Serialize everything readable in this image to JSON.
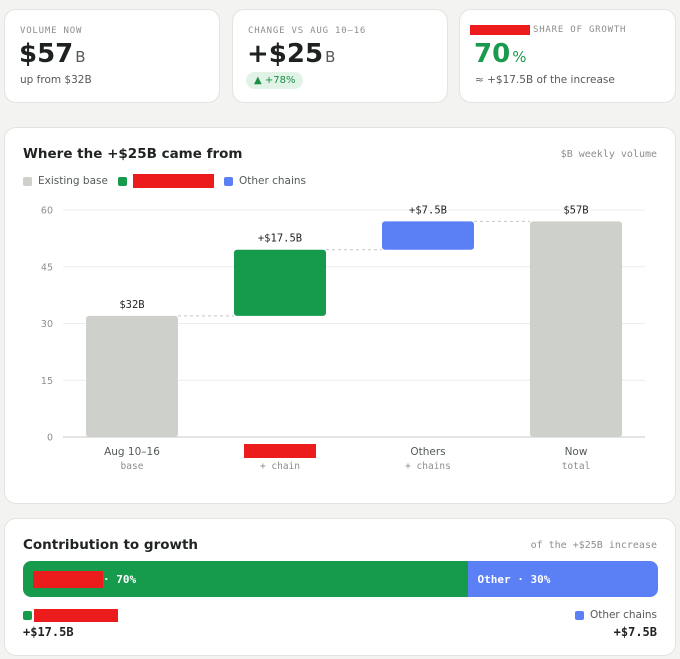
{
  "kpis": [
    {
      "label": "VOLUME NOW",
      "value": "$57",
      "unit": "B",
      "sub": "up from $32B"
    },
    {
      "label": "CHANGE VS AUG 10–16",
      "value": "+$25",
      "unit": "B",
      "badge": "▲ +78%"
    },
    {
      "label": "SHARE OF GROWTH",
      "value": "70",
      "unit": "%",
      "sub": "≈ +$17.5B of the increase"
    }
  ],
  "waterfall": {
    "title": "Where the +$25B came from",
    "note": "$B weekly volume",
    "legend": [
      {
        "label": "Existing base",
        "color": "#cdd0cb"
      },
      {
        "label": "",
        "color": "#169a4c"
      },
      {
        "label": "Other chains",
        "color": "#5b7ff5"
      }
    ]
  },
  "chart_data": {
    "type": "bar",
    "subtype": "waterfall",
    "title": "Where the +$25B came from",
    "note": "$B weekly volume",
    "ylim": [
      0,
      60
    ],
    "yticks": [
      0,
      15,
      30,
      45,
      60
    ],
    "grid": true,
    "legend_position": "top-left",
    "bars": [
      {
        "label": "Aug 10–16",
        "sub": "base",
        "start": 0,
        "end": 32,
        "value_label": "$32B",
        "color": "#cdd0cb"
      },
      {
        "label": "",
        "sub": "+ chain",
        "start": 32,
        "end": 49.5,
        "value_label": "+$17.5B",
        "color": "#169a4c"
      },
      {
        "label": "Others",
        "sub": "+ chains",
        "start": 49.5,
        "end": 57,
        "value_label": "+$7.5B",
        "color": "#5b7ff5"
      },
      {
        "label": "Now",
        "sub": "total",
        "start": 0,
        "end": 57,
        "value_label": "$57B",
        "color": "#cdd0cb"
      }
    ]
  },
  "contribution": {
    "title": "Contribution to growth",
    "note": "of the +$25B increase",
    "segments": [
      {
        "label": " · 70%",
        "share": 70,
        "color": "#169a4c"
      },
      {
        "label": "Other · 30%",
        "share": 30,
        "color": "#5b7ff5"
      }
    ],
    "left_key": "",
    "left_value": "+$17.5B",
    "right_key": "Other chains",
    "right_value": "+$7.5B"
  }
}
